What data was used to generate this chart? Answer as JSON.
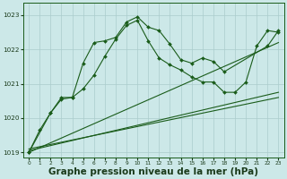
{
  "bg_color": "#cce8e8",
  "grid_color": "#aacccc",
  "line_color": "#1a5c1a",
  "xlabel": "Graphe pression niveau de la mer (hPa)",
  "xlabel_fontsize": 7.5,
  "ylim": [
    1018.85,
    1023.35
  ],
  "xlim": [
    -0.5,
    23.5
  ],
  "yticks": [
    1019,
    1020,
    1021,
    1022,
    1023
  ],
  "xticks": [
    0,
    1,
    2,
    3,
    4,
    5,
    6,
    7,
    8,
    9,
    10,
    11,
    12,
    13,
    14,
    15,
    16,
    17,
    18,
    19,
    20,
    21,
    22,
    23
  ],
  "curve1": {
    "x": [
      0,
      1,
      2,
      3,
      4,
      5,
      6,
      7,
      8,
      9,
      10,
      11,
      12,
      13,
      14,
      15,
      16,
      17,
      18,
      19,
      20,
      21,
      22,
      23
    ],
    "y": [
      1019.0,
      1019.65,
      1020.15,
      1020.6,
      1020.6,
      1020.85,
      1021.25,
      1021.8,
      1022.3,
      1022.7,
      1022.85,
      1022.25,
      1021.75,
      1021.55,
      1021.4,
      1021.2,
      1021.05,
      1021.05,
      1020.75,
      1020.75,
      1021.05,
      1022.1,
      1022.55,
      1022.5
    ]
  },
  "curve2": {
    "x": [
      0,
      2,
      3,
      4,
      5,
      6,
      7,
      8,
      9,
      10,
      11,
      12,
      13,
      14,
      15,
      16,
      17,
      18,
      22,
      23
    ],
    "y": [
      1019.0,
      1020.15,
      1020.55,
      1020.6,
      1021.6,
      1022.2,
      1022.25,
      1022.35,
      1022.8,
      1022.95,
      1022.65,
      1022.55,
      1022.15,
      1021.7,
      1021.6,
      1021.75,
      1021.65,
      1021.35,
      1022.1,
      1022.55
    ]
  },
  "line1": {
    "x": [
      0,
      23
    ],
    "y": [
      1019.0,
      1022.2
    ]
  },
  "line2": {
    "x": [
      0,
      23
    ],
    "y": [
      1019.05,
      1020.75
    ]
  },
  "line3": {
    "x": [
      0,
      23
    ],
    "y": [
      1019.1,
      1020.6
    ]
  }
}
